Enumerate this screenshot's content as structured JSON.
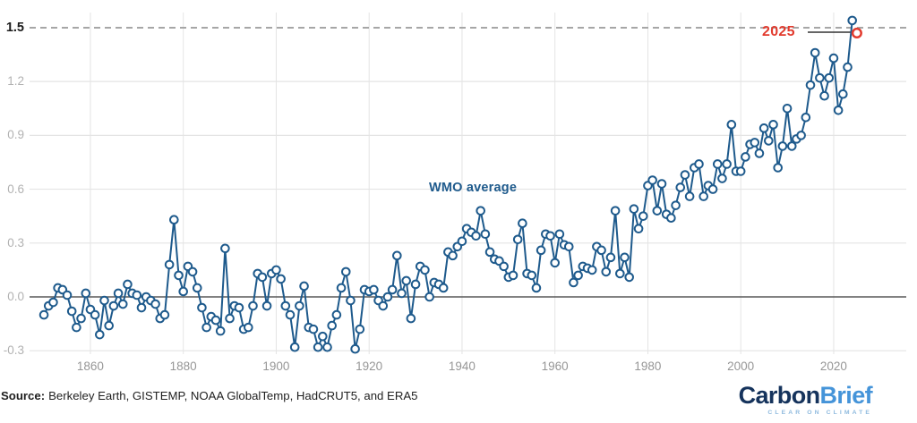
{
  "chart": {
    "series_label": "WMO average",
    "annotation_2025": "2025",
    "source_prefix": "Source:",
    "source_text": "Berkeley Earth, GISTEMP, NOAA GlobalTemp, HadCRUT5, and ERA5",
    "logo_part1": "Carbon",
    "logo_part2": "Brief",
    "logo_tagline": "CLEAR ON CLIMATE"
  },
  "chart_data": {
    "type": "line",
    "title": "",
    "series": [
      {
        "name": "WMO average",
        "start_year": 1850,
        "end_year": 2024,
        "values": [
          -0.1,
          -0.05,
          -0.03,
          0.05,
          0.04,
          0.01,
          -0.08,
          -0.17,
          -0.12,
          0.02,
          -0.07,
          -0.1,
          -0.21,
          -0.02,
          -0.16,
          -0.05,
          0.02,
          -0.04,
          0.07,
          0.02,
          0.01,
          -0.06,
          0.0,
          -0.02,
          -0.04,
          -0.12,
          -0.1,
          0.18,
          0.43,
          0.12,
          0.03,
          0.17,
          0.14,
          0.05,
          -0.06,
          -0.17,
          -0.11,
          -0.13,
          -0.19,
          0.27,
          -0.12,
          -0.05,
          -0.06,
          -0.18,
          -0.17,
          -0.05,
          0.13,
          0.11,
          -0.05,
          0.13,
          0.15,
          0.1,
          -0.05,
          -0.1,
          -0.28,
          -0.05,
          0.06,
          -0.17,
          -0.18,
          -0.28,
          -0.22,
          -0.28,
          -0.16,
          -0.1,
          0.05,
          0.14,
          -0.02,
          -0.29,
          -0.18,
          0.04,
          0.03,
          0.04,
          -0.02,
          -0.05,
          0.0,
          0.04,
          0.23,
          0.02,
          0.09,
          -0.12,
          0.07,
          0.17,
          0.15,
          0.0,
          0.08,
          0.07,
          0.05,
          0.25,
          0.23,
          0.28,
          0.31,
          0.38,
          0.36,
          0.34,
          0.48,
          0.35,
          0.25,
          0.21,
          0.2,
          0.17,
          0.11,
          0.12,
          0.32,
          0.41,
          0.13,
          0.12,
          0.05,
          0.26,
          0.35,
          0.34,
          0.19,
          0.35,
          0.29,
          0.28,
          0.08,
          0.12,
          0.17,
          0.16,
          0.15,
          0.28,
          0.26,
          0.14,
          0.22,
          0.48,
          0.13,
          0.22,
          0.11,
          0.49,
          0.38,
          0.45,
          0.62,
          0.65,
          0.48,
          0.63,
          0.46,
          0.44,
          0.51,
          0.61,
          0.68,
          0.56,
          0.72,
          0.74,
          0.56,
          0.62,
          0.6,
          0.74,
          0.66,
          0.74,
          0.96,
          0.7,
          0.7,
          0.78,
          0.85,
          0.86,
          0.8,
          0.94,
          0.87,
          0.96,
          0.72,
          0.84,
          1.05,
          0.84,
          0.88,
          0.9,
          1.0,
          1.18,
          1.36,
          1.22,
          1.12,
          1.22,
          1.33,
          1.04,
          1.13,
          1.28,
          1.54
        ]
      }
    ],
    "highlight": {
      "label": "2025",
      "year": 2025,
      "value": 1.47,
      "style": "open-red-circle"
    },
    "x_ticks": [
      1860,
      1880,
      1900,
      1920,
      1940,
      1960,
      1980,
      2000,
      2020
    ],
    "y_ticks": [
      {
        "value": -0.3,
        "label": "-0.3",
        "emphasis": false
      },
      {
        "value": 0.0,
        "label": "0.0",
        "emphasis": false
      },
      {
        "value": 0.3,
        "label": "0.3",
        "emphasis": false
      },
      {
        "value": 0.6,
        "label": "0.6",
        "emphasis": false
      },
      {
        "value": 0.9,
        "label": "0.9",
        "emphasis": false
      },
      {
        "value": 1.2,
        "label": "1.2",
        "emphasis": false
      },
      {
        "value": 1.5,
        "label": "1.5",
        "emphasis": true
      }
    ],
    "xlim": [
      1847,
      2031
    ],
    "ylim": [
      -0.38,
      1.6
    ],
    "grid": true,
    "legend_position": "none",
    "reference_lines": [
      {
        "value": 0.0,
        "style": "solid"
      },
      {
        "value": 1.5,
        "style": "dashed"
      }
    ],
    "colors": {
      "line": "#1e5a8c",
      "marker_fill": "#ffffff",
      "highlight": "#e23b2e",
      "grid": "#e4e4e4",
      "zero_line": "#595959",
      "dashed_line": "#a6a6a6",
      "annotation_line": "#333333",
      "axis_text": "#9b9b9b"
    }
  }
}
